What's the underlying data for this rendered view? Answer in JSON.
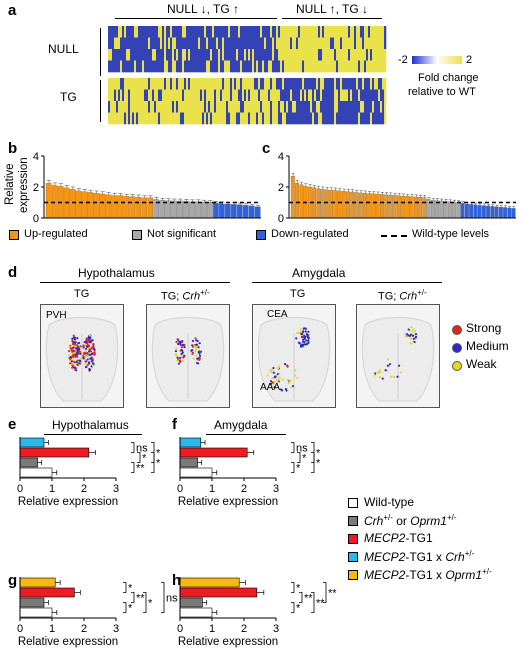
{
  "panel_a": {
    "letter": "a",
    "group_left": "NULL ↓, TG ↑",
    "group_right": "NULL ↑, TG ↓",
    "row_null": "NULL",
    "row_tg": "TG",
    "colorbar_min": "-2",
    "colorbar_max": "2",
    "colorbar_label_1": "Fold change",
    "colorbar_label_2": "relative to WT",
    "colors": {
      "low": "#3343b5",
      "high": "#e9e24a"
    }
  },
  "panel_b": {
    "letter": "b",
    "ylabel_1": "Relative",
    "ylabel_2": "expression",
    "yticks": [
      "0",
      "2",
      "4"
    ],
    "ylim": [
      0,
      4
    ],
    "baseline": 1,
    "up_values": [
      2.25,
      2.1,
      2.05,
      1.95,
      1.85,
      1.75,
      1.7,
      1.65,
      1.6,
      1.55,
      1.5,
      1.45,
      1.45,
      1.4,
      1.38,
      1.35,
      1.3,
      1.3
    ],
    "ns_values": [
      1.2,
      1.15,
      1.12,
      1.1,
      1.1,
      1.08,
      1.05,
      1.05,
      1.03,
      1.0
    ],
    "down_values": [
      0.95,
      0.92,
      0.9,
      0.88,
      0.85,
      0.82,
      0.78,
      0.72
    ]
  },
  "panel_c": {
    "letter": "c",
    "yticks": [
      "0",
      "2",
      "4"
    ],
    "ylim": [
      0,
      4
    ],
    "baseline": 1,
    "up_values": [
      2.7,
      2.25,
      2.15,
      2.05,
      2.0,
      1.95,
      1.9,
      1.85,
      1.82,
      1.8,
      1.78,
      1.75,
      1.72,
      1.7,
      1.68,
      1.65,
      1.62,
      1.6,
      1.58,
      1.56,
      1.54,
      1.52,
      1.5,
      1.48,
      1.46,
      1.44,
      1.42,
      1.4,
      1.38,
      1.36,
      1.34,
      1.32
    ],
    "ns_values": [
      1.2,
      1.15,
      1.12,
      1.1,
      1.08,
      1.05,
      1.03,
      1.0
    ],
    "down_values": [
      0.95,
      0.9,
      0.88,
      0.85,
      0.82,
      0.8,
      0.78,
      0.75,
      0.72,
      0.7,
      0.68,
      0.65,
      0.62
    ]
  },
  "bc_legend": {
    "up": "Up-regulated",
    "ns": "Not significant",
    "down": "Down-regulated",
    "wt": "Wild-type levels"
  },
  "panel_d": {
    "letter": "d",
    "region_1": "Hypothalamus",
    "region_2": "Amygdala",
    "tg": "TG",
    "tg_crh": "TG; ",
    "crh": "Crh",
    "crh_sup": "+/-",
    "pvh": "PVH",
    "cea": "CEA",
    "aaa": "AAA",
    "legend": [
      "Strong",
      "Medium",
      "Weak"
    ],
    "legend_colors": [
      "#e8221b",
      "#2a2ad0",
      "#e6d628"
    ]
  },
  "bar_panels": {
    "xlabel": "Relative expression",
    "xticks": [
      "0",
      "1",
      "2",
      "3"
    ],
    "xlim": [
      0,
      3
    ],
    "e": {
      "letter": "e",
      "title": "Hypothalamus",
      "values": [
        0.75,
        2.15,
        0.55,
        1.0
      ],
      "sig": [
        "ns",
        "*",
        "**",
        "*",
        "*"
      ]
    },
    "f": {
      "letter": "f",
      "title": "Amygdala",
      "values": [
        0.65,
        2.1,
        0.55,
        1.0
      ],
      "sig": [
        "ns",
        "*",
        "*",
        "*",
        "*"
      ]
    },
    "g": {
      "letter": "g",
      "values": [
        1.1,
        1.7,
        0.75,
        1.0
      ],
      "sig": [
        "*",
        "**",
        "*",
        "*",
        "ns"
      ]
    },
    "h": {
      "letter": "h",
      "values": [
        1.85,
        2.4,
        0.7,
        1.0
      ],
      "sig": [
        "*",
        "**",
        "*",
        "**",
        "**"
      ]
    }
  },
  "eh_legend": {
    "wt": "Wild-type",
    "het_crh": "Crh",
    "het_sup": "+/-",
    "het_or": " or ",
    "het_oprm": "Oprm1",
    "tg1": "MECP2",
    "tg1_suffix": "-TG1",
    "tg1_crh_suffix": "-TG1 x ",
    "tg1_oprm_suffix": "-TG1 x "
  },
  "colors": {
    "orange": "#f39519",
    "grey": "#a8a8a8",
    "blue": "#2f62e0",
    "red": "#ec1c24",
    "cyan": "#2bb7ea",
    "yellow": "#f7b814",
    "darkgrey": "#7a7a7a",
    "white": "#ffffff"
  }
}
